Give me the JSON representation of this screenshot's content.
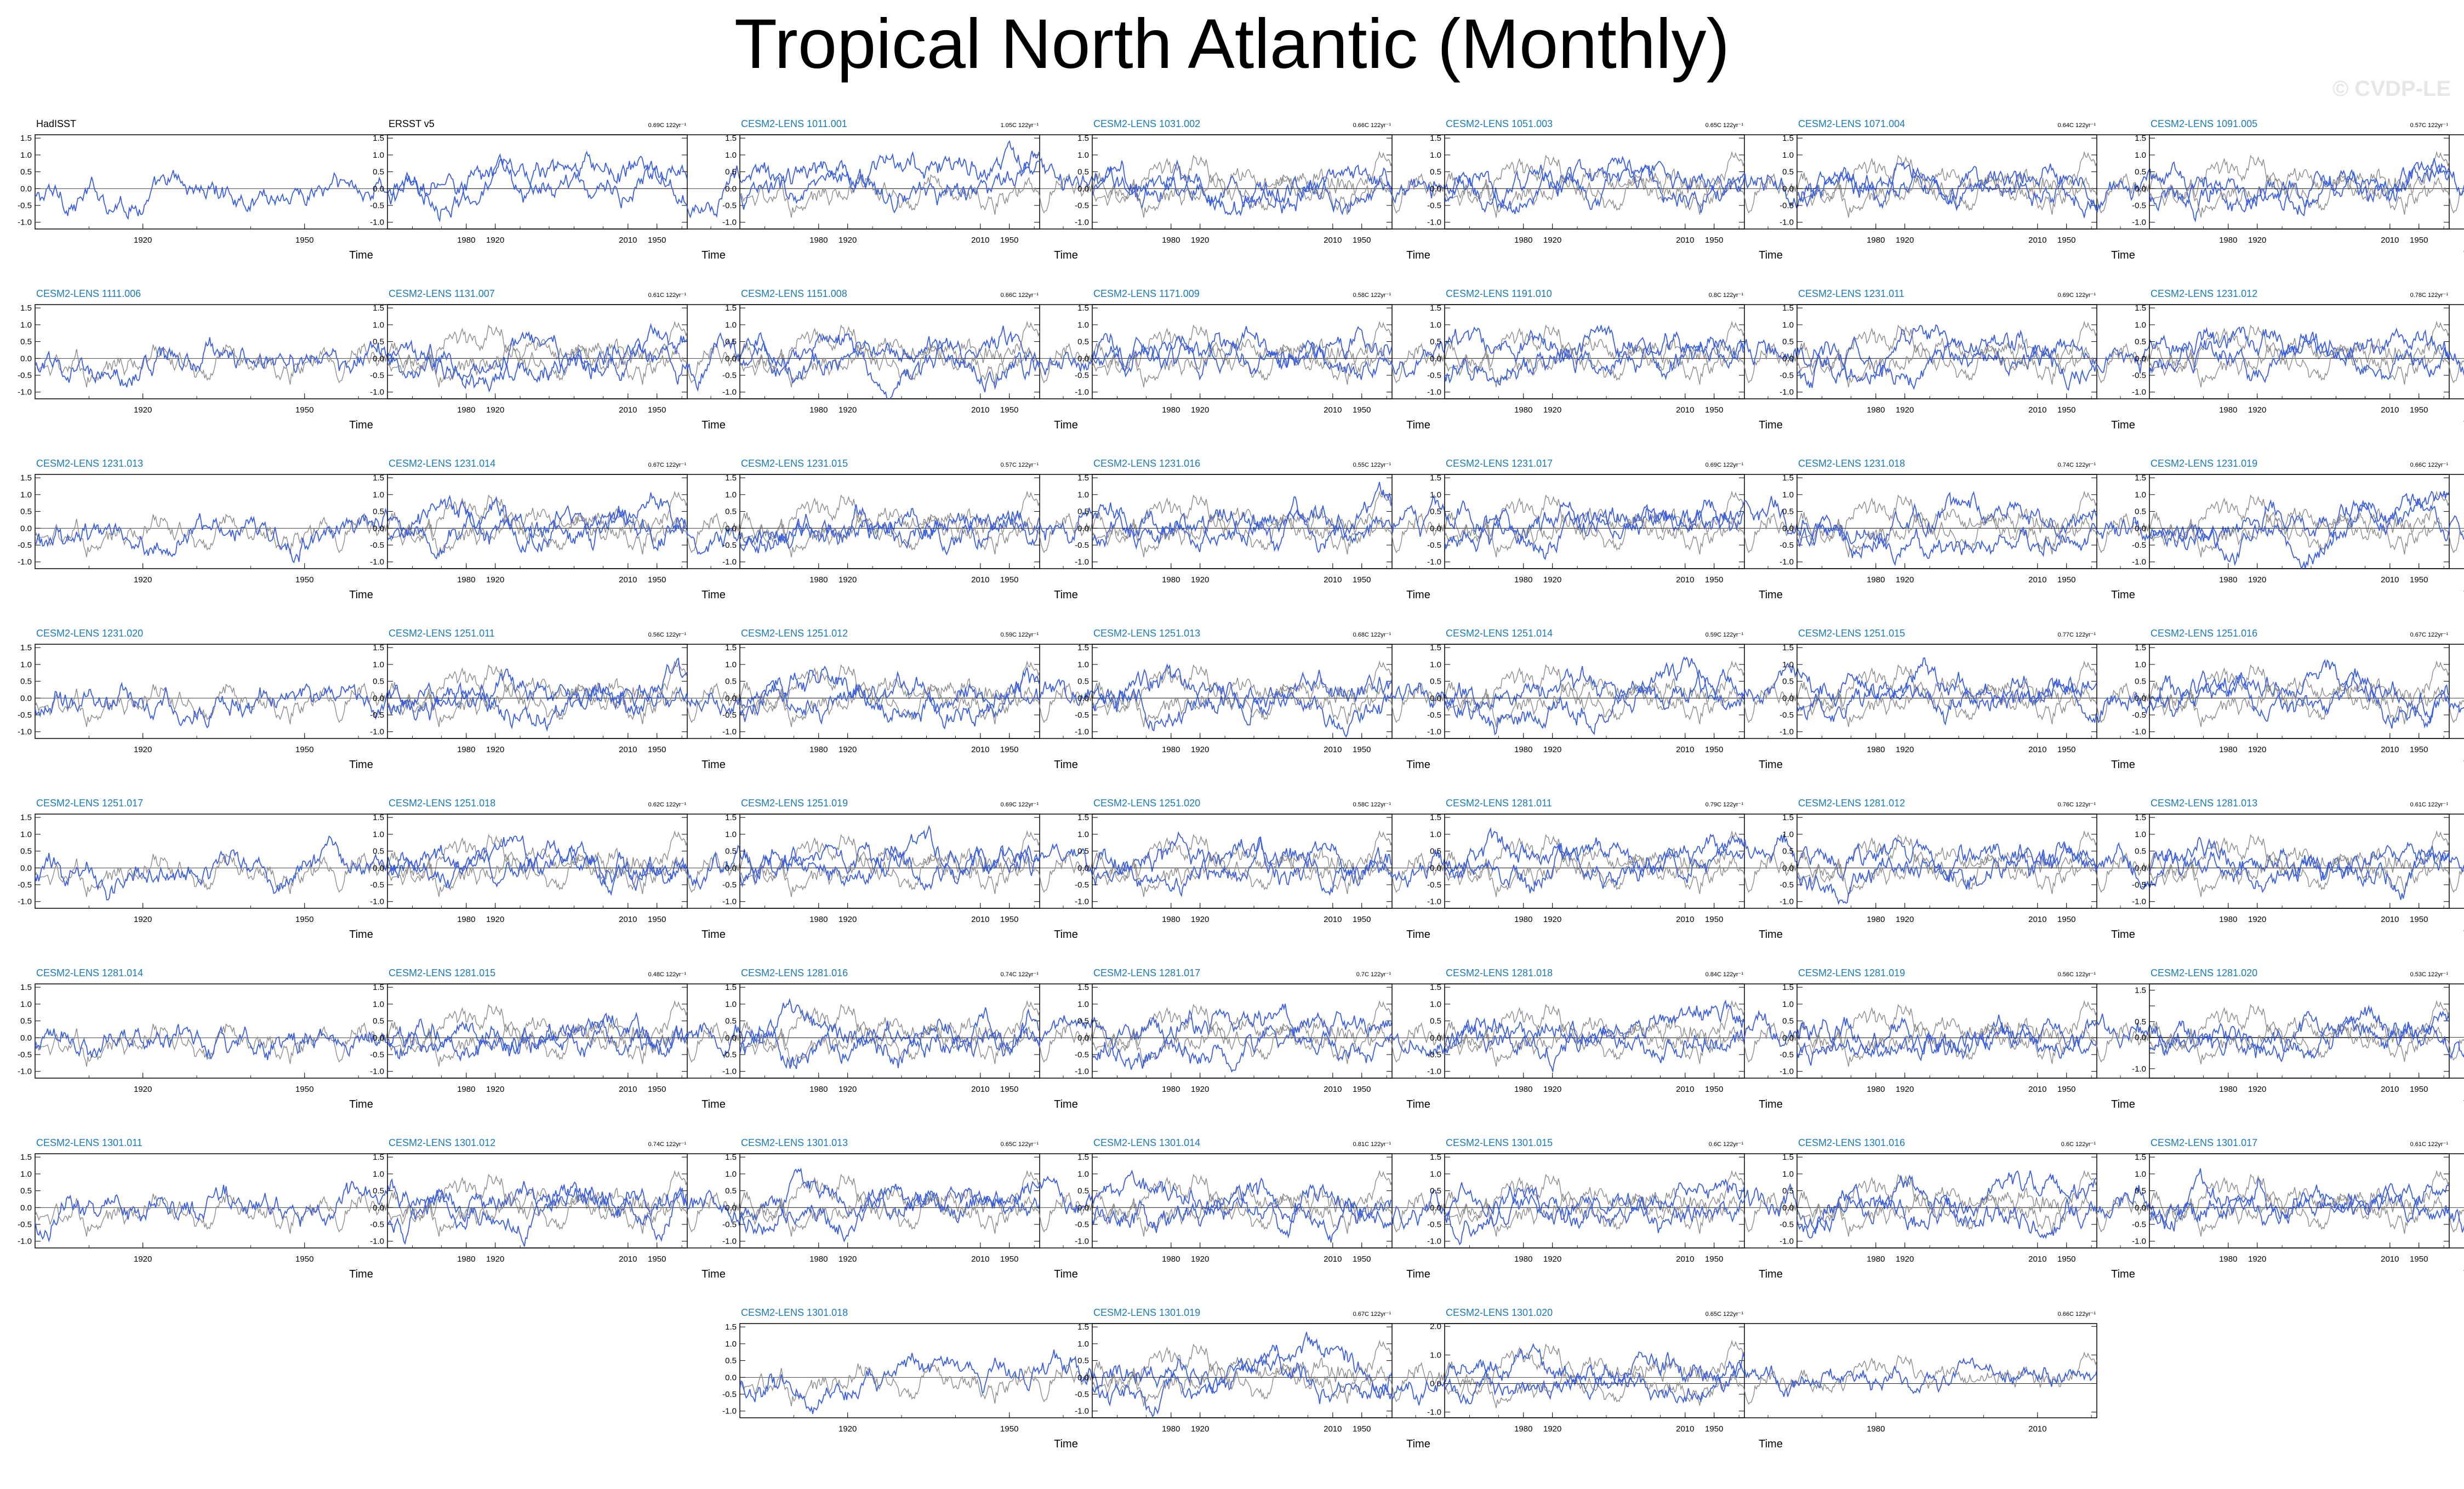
{
  "title": "Tropical North Atlantic (Monthly)",
  "watermark": "© CVDP-LE",
  "colors": {
    "observed": "#000000",
    "ensemble_label": "#1a7ab8",
    "model_line": "#3b5fe0",
    "obs_line_gray": "#8c8c8c"
  },
  "chart_data": {
    "type": "line",
    "xlabel": "Time",
    "x_ticks": [
      1920,
      1950,
      1980,
      2010
    ],
    "xlim": [
      1900,
      2021
    ],
    "panels": [
      {
        "name": "HadISST",
        "trend": "0.69C 122yr⁻¹",
        "observed": true,
        "ylim": [
          -1.2,
          1.6
        ],
        "y_ticks": [
          "1.5",
          "1.0",
          "0.5",
          "0.0",
          "-0.5",
          "-1.0"
        ]
      },
      {
        "name": "ERSST v5",
        "trend": "1.05C 122yr⁻¹",
        "observed": true,
        "ylim": [
          -1.2,
          1.6
        ],
        "y_ticks": [
          "1.5",
          "1.0",
          "0.5",
          "0.0",
          "-0.5",
          "-1.0"
        ]
      },
      {
        "name": "CESM2-LENS 1011.001",
        "trend": "0.66C 122yr⁻¹",
        "ylim": [
          -1.2,
          1.6
        ],
        "y_ticks": [
          "1.5",
          "1.0",
          "0.5",
          "0.0",
          "-0.5",
          "-1.0"
        ]
      },
      {
        "name": "CESM2-LENS 1031.002",
        "trend": "0.65C 122yr⁻¹",
        "ylim": [
          -1.2,
          1.6
        ],
        "y_ticks": [
          "1.5",
          "1.0",
          "0.5",
          "0.0",
          "-0.5",
          "-1.0"
        ]
      },
      {
        "name": "CESM2-LENS 1051.003",
        "trend": "0.64C 122yr⁻¹",
        "ylim": [
          -1.2,
          1.6
        ],
        "y_ticks": [
          "1.5",
          "1.0",
          "0.5",
          "0.0",
          "-0.5",
          "-1.0"
        ]
      },
      {
        "name": "CESM2-LENS 1071.004",
        "trend": "0.57C 122yr⁻¹",
        "ylim": [
          -1.2,
          1.6
        ],
        "y_ticks": [
          "1.5",
          "1.0",
          "0.5",
          "0.0",
          "-0.5",
          "-1.0"
        ]
      },
      {
        "name": "CESM2-LENS 1091.005",
        "trend": "0.74C 122yr⁻¹",
        "ylim": [
          -1.2,
          1.6
        ],
        "y_ticks": [
          "1.5",
          "1.0",
          "0.5",
          "0.0",
          "-0.5",
          "-1.0"
        ]
      },
      {
        "name": "CESM2-LENS 1111.006",
        "trend": "0.61C 122yr⁻¹",
        "ylim": [
          -1.2,
          1.6
        ],
        "y_ticks": [
          "1.5",
          "1.0",
          "0.5",
          "0.0",
          "-0.5",
          "-1.0"
        ]
      },
      {
        "name": "CESM2-LENS 1131.007",
        "trend": "0.66C 122yr⁻¹",
        "ylim": [
          -1.2,
          1.6
        ],
        "y_ticks": [
          "1.5",
          "1.0",
          "0.5",
          "0.0",
          "-0.5",
          "-1.0"
        ]
      },
      {
        "name": "CESM2-LENS 1151.008",
        "trend": "0.58C 122yr⁻¹",
        "ylim": [
          -1.2,
          1.6
        ],
        "y_ticks": [
          "1.5",
          "1.0",
          "0.5",
          "0.0",
          "-0.5",
          "-1.0"
        ]
      },
      {
        "name": "CESM2-LENS 1171.009",
        "trend": "0.8C 122yr⁻¹",
        "ylim": [
          -1.2,
          1.6
        ],
        "y_ticks": [
          "1.5",
          "1.0",
          "0.5",
          "0.0",
          "-0.5",
          "-1.0"
        ]
      },
      {
        "name": "CESM2-LENS 1191.010",
        "trend": "0.69C 122yr⁻¹",
        "ylim": [
          -1.2,
          1.6
        ],
        "y_ticks": [
          "1.5",
          "1.0",
          "0.5",
          "0.0",
          "-0.5",
          "-1.0"
        ]
      },
      {
        "name": "CESM2-LENS 1231.011",
        "trend": "0.78C 122yr⁻¹",
        "ylim": [
          -1.2,
          1.6
        ],
        "y_ticks": [
          "1.5",
          "1.0",
          "0.5",
          "0.0",
          "-0.5",
          "-1.0"
        ]
      },
      {
        "name": "CESM2-LENS 1231.012",
        "trend": "0.73C 122yr⁻¹",
        "ylim": [
          -1.2,
          1.6
        ],
        "y_ticks": [
          "1.5",
          "1.0",
          "0.5",
          "0.0",
          "-0.5",
          "-1.0"
        ]
      },
      {
        "name": "CESM2-LENS 1231.013",
        "trend": "0.67C 122yr⁻¹",
        "ylim": [
          -1.2,
          1.6
        ],
        "y_ticks": [
          "1.5",
          "1.0",
          "0.5",
          "0.0",
          "-0.5",
          "-1.0"
        ]
      },
      {
        "name": "CESM2-LENS 1231.014",
        "trend": "0.57C 122yr⁻¹",
        "ylim": [
          -1.2,
          1.6
        ],
        "y_ticks": [
          "1.5",
          "1.0",
          "0.5",
          "0.0",
          "-0.5",
          "-1.0"
        ]
      },
      {
        "name": "CESM2-LENS 1231.015",
        "trend": "0.55C 122yr⁻¹",
        "ylim": [
          -1.2,
          1.6
        ],
        "y_ticks": [
          "1.5",
          "1.0",
          "0.5",
          "0.0",
          "-0.5",
          "-1.0"
        ]
      },
      {
        "name": "CESM2-LENS 1231.016",
        "trend": "0.69C 122yr⁻¹",
        "ylim": [
          -1.2,
          1.6
        ],
        "y_ticks": [
          "1.5",
          "1.0",
          "0.5",
          "0.0",
          "-0.5",
          "-1.0"
        ]
      },
      {
        "name": "CESM2-LENS 1231.017",
        "trend": "0.74C 122yr⁻¹",
        "ylim": [
          -1.2,
          1.6
        ],
        "y_ticks": [
          "1.5",
          "1.0",
          "0.5",
          "0.0",
          "-0.5",
          "-1.0"
        ]
      },
      {
        "name": "CESM2-LENS 1231.018",
        "trend": "0.66C 122yr⁻¹",
        "ylim": [
          -1.2,
          1.6
        ],
        "y_ticks": [
          "1.5",
          "1.0",
          "0.5",
          "0.0",
          "-0.5",
          "-1.0"
        ]
      },
      {
        "name": "CESM2-LENS 1231.019",
        "trend": "0.78C 122yr⁻¹",
        "ylim": [
          -1.2,
          1.6
        ],
        "y_ticks": [
          "1.5",
          "1.0",
          "0.5",
          "0.0",
          "-0.5",
          "-1.0"
        ]
      },
      {
        "name": "CESM2-LENS 1231.020",
        "trend": "0.56C 122yr⁻¹",
        "ylim": [
          -1.2,
          1.6
        ],
        "y_ticks": [
          "1.5",
          "1.0",
          "0.5",
          "0.0",
          "-0.5",
          "-1.0"
        ]
      },
      {
        "name": "CESM2-LENS 1251.011",
        "trend": "0.59C 122yr⁻¹",
        "ylim": [
          -1.2,
          1.6
        ],
        "y_ticks": [
          "1.5",
          "1.0",
          "0.5",
          "0.0",
          "-0.5",
          "-1.0"
        ]
      },
      {
        "name": "CESM2-LENS 1251.012",
        "trend": "0.68C 122yr⁻¹",
        "ylim": [
          -1.2,
          1.6
        ],
        "y_ticks": [
          "1.5",
          "1.0",
          "0.5",
          "0.0",
          "-0.5",
          "-1.0"
        ]
      },
      {
        "name": "CESM2-LENS 1251.013",
        "trend": "0.59C 122yr⁻¹",
        "ylim": [
          -1.2,
          1.6
        ],
        "y_ticks": [
          "1.5",
          "1.0",
          "0.5",
          "0.0",
          "-0.5",
          "-1.0"
        ]
      },
      {
        "name": "CESM2-LENS 1251.014",
        "trend": "0.77C 122yr⁻¹",
        "ylim": [
          -1.2,
          1.6
        ],
        "y_ticks": [
          "1.5",
          "1.0",
          "0.5",
          "0.0",
          "-0.5",
          "-1.0"
        ]
      },
      {
        "name": "CESM2-LENS 1251.015",
        "trend": "0.67C 122yr⁻¹",
        "ylim": [
          -1.2,
          1.6
        ],
        "y_ticks": [
          "1.5",
          "1.0",
          "0.5",
          "0.0",
          "-0.5",
          "-1.0"
        ]
      },
      {
        "name": "CESM2-LENS 1251.016",
        "trend": "0.64C 122yr⁻¹",
        "ylim": [
          -1.2,
          1.6
        ],
        "y_ticks": [
          "1.5",
          "1.0",
          "0.5",
          "0.0",
          "-0.5",
          "-1.0"
        ]
      },
      {
        "name": "CESM2-LENS 1251.017",
        "trend": "0.62C 122yr⁻¹",
        "ylim": [
          -1.2,
          1.6
        ],
        "y_ticks": [
          "1.5",
          "1.0",
          "0.5",
          "0.0",
          "-0.5",
          "-1.0"
        ]
      },
      {
        "name": "CESM2-LENS 1251.018",
        "trend": "0.69C 122yr⁻¹",
        "ylim": [
          -1.2,
          1.6
        ],
        "y_ticks": [
          "1.5",
          "1.0",
          "0.5",
          "0.0",
          "-0.5",
          "-1.0"
        ]
      },
      {
        "name": "CESM2-LENS 1251.019",
        "trend": "0.58C 122yr⁻¹",
        "ylim": [
          -1.2,
          1.6
        ],
        "y_ticks": [
          "1.5",
          "1.0",
          "0.5",
          "0.0",
          "-0.5",
          "-1.0"
        ]
      },
      {
        "name": "CESM2-LENS 1251.020",
        "trend": "0.79C 122yr⁻¹",
        "ylim": [
          -1.2,
          1.6
        ],
        "y_ticks": [
          "1.5",
          "1.0",
          "0.5",
          "0.0",
          "-0.5",
          "-1.0"
        ]
      },
      {
        "name": "CESM2-LENS 1281.011",
        "trend": "0.76C 122yr⁻¹",
        "ylim": [
          -1.2,
          1.6
        ],
        "y_ticks": [
          "1.5",
          "1.0",
          "0.5",
          "0.0",
          "-0.5",
          "-1.0"
        ]
      },
      {
        "name": "CESM2-LENS 1281.012",
        "trend": "0.61C 122yr⁻¹",
        "ylim": [
          -1.2,
          1.6
        ],
        "y_ticks": [
          "1.5",
          "1.0",
          "0.5",
          "0.0",
          "-0.5",
          "-1.0"
        ]
      },
      {
        "name": "CESM2-LENS 1281.013",
        "trend": "0.62C 122yr⁻¹",
        "ylim": [
          -1.2,
          1.6
        ],
        "y_ticks": [
          "1.5",
          "1.0",
          "0.5",
          "0.0",
          "-0.5",
          "-1.0"
        ]
      },
      {
        "name": "CESM2-LENS 1281.014",
        "trend": "0.48C 122yr⁻¹",
        "ylim": [
          -1.2,
          1.6
        ],
        "y_ticks": [
          "1.5",
          "1.0",
          "0.5",
          "0.0",
          "-0.5",
          "-1.0"
        ]
      },
      {
        "name": "CESM2-LENS 1281.015",
        "trend": "0.74C 122yr⁻¹",
        "ylim": [
          -1.2,
          1.6
        ],
        "y_ticks": [
          "1.5",
          "1.0",
          "0.5",
          "0.0",
          "-0.5",
          "-1.0"
        ]
      },
      {
        "name": "CESM2-LENS 1281.016",
        "trend": "0.7C 122yr⁻¹",
        "ylim": [
          -1.2,
          1.6
        ],
        "y_ticks": [
          "1.5",
          "1.0",
          "0.5",
          "0.0",
          "-0.5",
          "-1.0"
        ]
      },
      {
        "name": "CESM2-LENS 1281.017",
        "trend": "0.84C 122yr⁻¹",
        "ylim": [
          -1.2,
          1.6
        ],
        "y_ticks": [
          "1.5",
          "1.0",
          "0.5",
          "0.0",
          "-0.5",
          "-1.0"
        ]
      },
      {
        "name": "CESM2-LENS 1281.018",
        "trend": "0.56C 122yr⁻¹",
        "ylim": [
          -1.2,
          1.6
        ],
        "y_ticks": [
          "1.5",
          "1.0",
          "0.5",
          "0.0",
          "-0.5",
          "-1.0"
        ]
      },
      {
        "name": "CESM2-LENS 1281.019",
        "trend": "0.53C 122yr⁻¹",
        "ylim": [
          -1.2,
          1.6
        ],
        "y_ticks": [
          "1.5",
          "1.0",
          "0.5",
          "0.0",
          "-0.5",
          "-1.0"
        ]
      },
      {
        "name": "CESM2-LENS 1281.020",
        "trend": "0.84C 122yr⁻¹",
        "ylim": [
          -1.3,
          1.7
        ],
        "y_ticks": [
          "1.5",
          "1.0",
          "0.5",
          "0.0",
          "-0.5",
          "-1.0"
        ],
        "y_ticks_shown": [
          "1.5",
          "",
          "0.5",
          "0.0",
          "",
          "-1.0"
        ]
      },
      {
        "name": "CESM2-LENS 1301.011",
        "trend": "0.74C 122yr⁻¹",
        "ylim": [
          -1.2,
          1.6
        ],
        "y_ticks": [
          "1.5",
          "1.0",
          "0.5",
          "0.0",
          "-0.5",
          "-1.0"
        ]
      },
      {
        "name": "CESM2-LENS 1301.012",
        "trend": "0.65C 122yr⁻¹",
        "ylim": [
          -1.2,
          1.6
        ],
        "y_ticks": [
          "1.5",
          "1.0",
          "0.5",
          "0.0",
          "-0.5",
          "-1.0"
        ]
      },
      {
        "name": "CESM2-LENS 1301.013",
        "trend": "0.81C 122yr⁻¹",
        "ylim": [
          -1.2,
          1.6
        ],
        "y_ticks": [
          "1.5",
          "1.0",
          "0.5",
          "0.0",
          "-0.5",
          "-1.0"
        ]
      },
      {
        "name": "CESM2-LENS 1301.014",
        "trend": "0.6C 122yr⁻¹",
        "ylim": [
          -1.2,
          1.6
        ],
        "y_ticks": [
          "1.5",
          "1.0",
          "0.5",
          "0.0",
          "-0.5",
          "-1.0"
        ]
      },
      {
        "name": "CESM2-LENS 1301.015",
        "trend": "0.6C 122yr⁻¹",
        "ylim": [
          -1.2,
          1.6
        ],
        "y_ticks": [
          "1.5",
          "1.0",
          "0.5",
          "0.0",
          "-0.5",
          "-1.0"
        ]
      },
      {
        "name": "CESM2-LENS 1301.016",
        "trend": "0.61C 122yr⁻¹",
        "ylim": [
          -1.2,
          1.6
        ],
        "y_ticks": [
          "1.5",
          "1.0",
          "0.5",
          "0.0",
          "-0.5",
          "-1.0"
        ]
      },
      {
        "name": "CESM2-LENS 1301.017",
        "trend": "0.65C 122yr⁻¹",
        "ylim": [
          -1.2,
          1.6
        ],
        "y_ticks": [
          "1.5",
          "1.0",
          "0.5",
          "0.0",
          "-0.5",
          "-1.0"
        ]
      },
      {
        "name": "CESM2-LENS 1301.018",
        "trend": "0.67C 122yr⁻¹",
        "ylim": [
          -1.2,
          1.6
        ],
        "y_ticks": [
          "1.5",
          "1.0",
          "0.5",
          "0.0",
          "-0.5",
          "-1.0"
        ]
      },
      {
        "name": "CESM2-LENS 1301.019",
        "trend": "0.65C 122yr⁻¹",
        "ylim": [
          -1.2,
          1.6
        ],
        "y_ticks": [
          "1.5",
          "1.0",
          "0.5",
          "0.0",
          "-0.5",
          "-1.0"
        ]
      },
      {
        "name": "CESM2-LENS 1301.020",
        "trend": "0.66C 122yr⁻¹",
        "ylim": [
          -1.2,
          2.1
        ],
        "y_ticks": [
          "2.0",
          "1.0",
          "0.0",
          "-1.0"
        ]
      }
    ]
  }
}
